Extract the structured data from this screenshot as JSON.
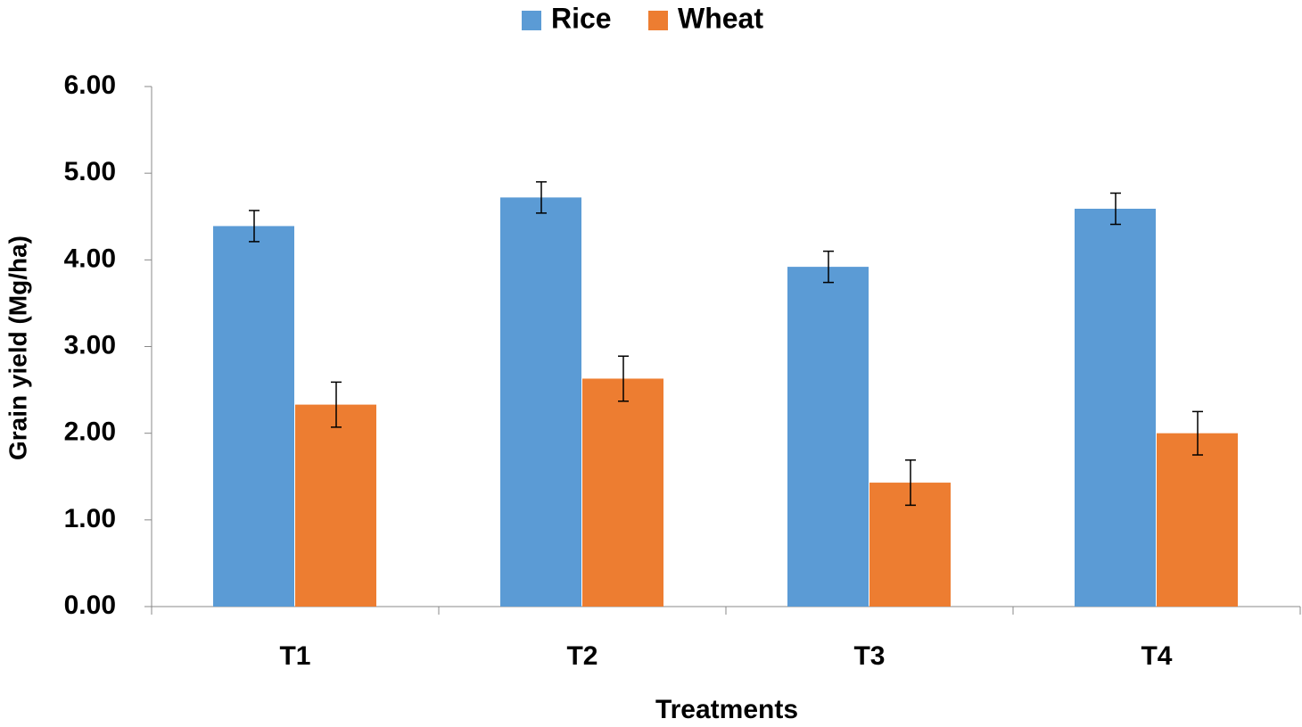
{
  "chart_data": {
    "type": "bar",
    "x_label": "Treatments",
    "y_label": "Grain yield (Mg/ha)",
    "categories": [
      "T1",
      "T2",
      "T3",
      "T4"
    ],
    "series": [
      {
        "name": "Rice",
        "color": "#5b9bd5",
        "values": [
          4.39,
          4.72,
          3.92,
          4.59
        ],
        "errors": [
          0.18,
          0.18,
          0.18,
          0.18
        ]
      },
      {
        "name": "Wheat",
        "color": "#ed7d31",
        "values": [
          2.33,
          2.63,
          1.43,
          2.0
        ],
        "errors": [
          0.26,
          0.26,
          0.26,
          0.25
        ]
      }
    ],
    "ylim": [
      0,
      6
    ],
    "yticks": [
      {
        "value": 0,
        "label": "0.00"
      },
      {
        "value": 1,
        "label": "1.00"
      },
      {
        "value": 2,
        "label": "2.00"
      },
      {
        "value": 3,
        "label": "3.00"
      },
      {
        "value": 4,
        "label": "4.00"
      },
      {
        "value": 5,
        "label": "5.00"
      },
      {
        "value": 6,
        "label": "6.00"
      }
    ],
    "legend": "top"
  }
}
